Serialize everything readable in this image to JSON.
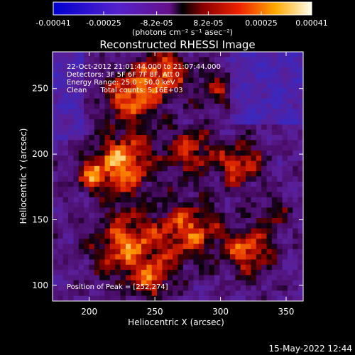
{
  "chart_data": {
    "type": "heatmap",
    "title": "Reconstructed RHESSI Image",
    "xlabel": "Heliocentric X (arcsec)",
    "ylabel": "Heliocentric Y (arcsec)",
    "xlim": [
      172,
      363
    ],
    "ylim": [
      88,
      278
    ],
    "x_ticks": [
      "200",
      "250",
      "300",
      "350"
    ],
    "x_tick_values": [
      200,
      250,
      300,
      350
    ],
    "y_ticks": [
      "100",
      "150",
      "200",
      "250"
    ],
    "y_tick_values": [
      100,
      150,
      200,
      250
    ],
    "colorbar": {
      "min": -0.00041,
      "max": 0.00041,
      "tick_labels": [
        "-0.00041",
        "-0.00025",
        "-8.2e-05",
        "8.2e-05",
        "0.00025",
        "0.00041"
      ],
      "tick_values": [
        -0.00041,
        -0.00025,
        -8.2e-05,
        8.2e-05,
        0.00025,
        0.00041
      ],
      "unit_label": "(photons cm⁻² s⁻¹ asec⁻²)"
    },
    "annotations": {
      "time_range": "22-Oct-2012 21:01:44.000 to 21:07:44.000",
      "detectors": "Detectors: 3F 5F 6F 7F 8F, Att 0",
      "energy_range": "Energy Range: 25.0 - 50.0 keV",
      "clean_counts": "Clean      Total counts: 5.16E+03",
      "peak": "Position of Peak = [252,274]"
    },
    "colors": {
      "background": "#000000",
      "text": "#ffffff"
    }
  },
  "footer": {
    "date": "15-May-2022 12:44"
  }
}
